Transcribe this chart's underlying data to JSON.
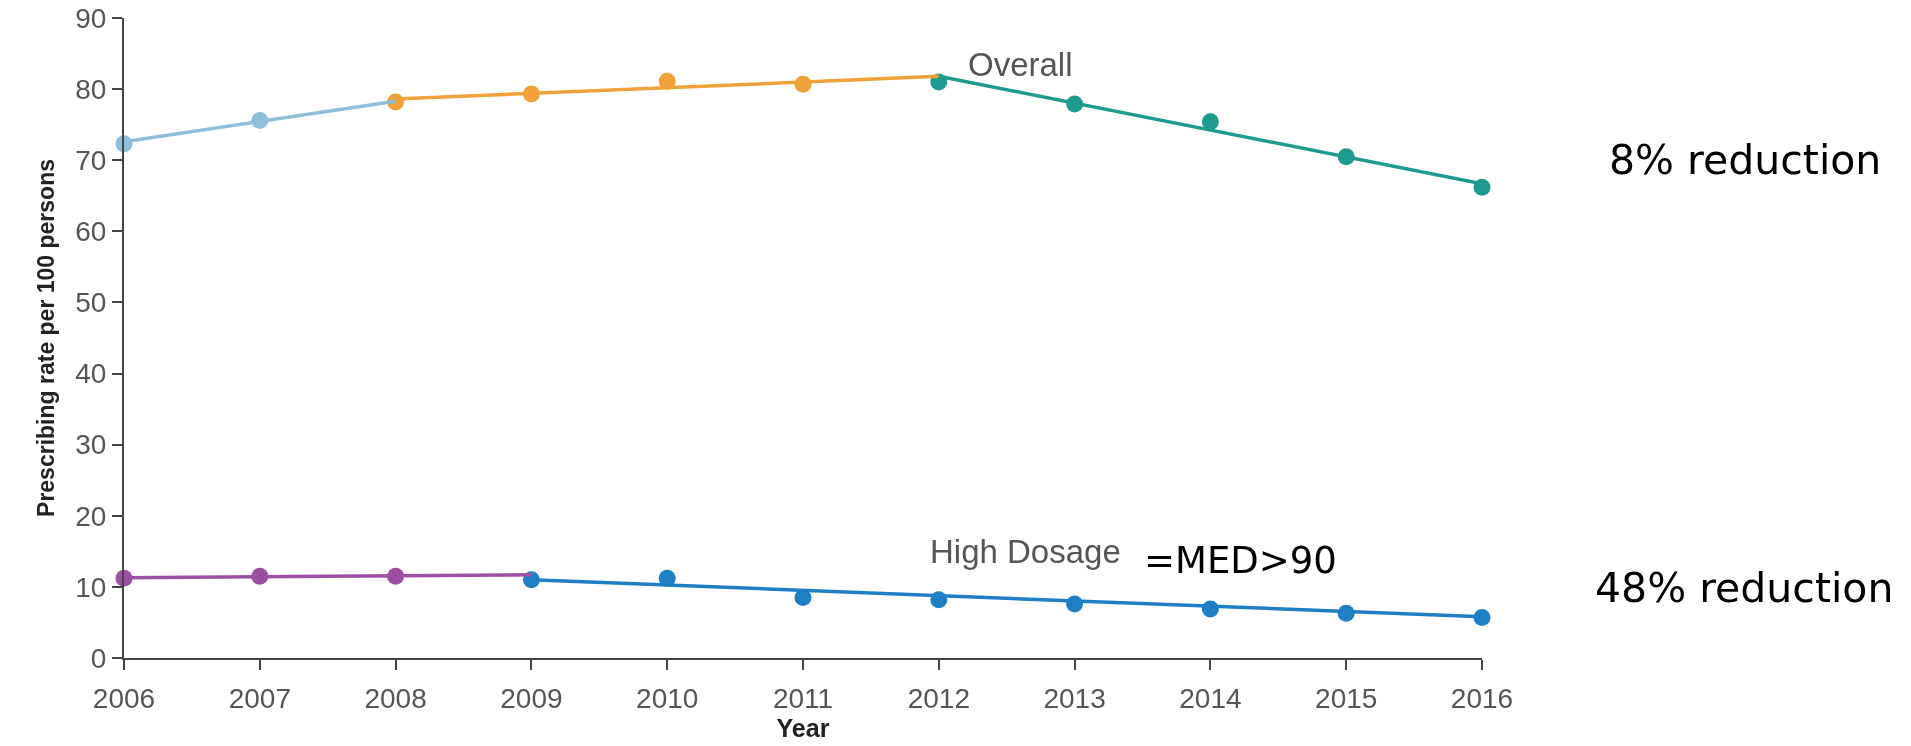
{
  "chart_data": {
    "type": "scatter",
    "xlabel": "Year",
    "ylabel": "Prescribing rate per 100 persons",
    "x": [
      2006,
      2007,
      2008,
      2009,
      2010,
      2011,
      2012,
      2013,
      2014,
      2015,
      2016
    ],
    "xlim": [
      2006,
      2016
    ],
    "xticks": [
      2006,
      2007,
      2008,
      2009,
      2010,
      2011,
      2012,
      2013,
      2014,
      2015,
      2016
    ],
    "ylim": [
      0,
      90
    ],
    "yticks": [
      0,
      10,
      20,
      30,
      40,
      50,
      60,
      70,
      80,
      90
    ],
    "grid": false,
    "marker": "circle",
    "series": [
      {
        "values": [
          72.3,
          75.6,
          78.2,
          79.3,
          81.1,
          80.7,
          81.0,
          77.9,
          75.4,
          70.5,
          66.2
        ],
        "colors": [
          "#8dbfdb",
          "#8dbfdb",
          "#f0a13a",
          "#f0a13a",
          "#f0a13a",
          "#f0a13a",
          "#1e9a8f",
          "#1e9a8f",
          "#1e9a8f",
          "#1e9a8f",
          "#1e9a8f"
        ]
      },
      {
        "values": [
          11.2,
          11.5,
          11.5,
          11.0,
          11.2,
          8.5,
          8.2,
          7.6,
          6.9,
          6.3,
          5.7
        ],
        "colors": [
          "#9c4fa3",
          "#9c4fa3",
          "#9c4fa3",
          "#1f7fc4",
          "#1f7fc4",
          "#1f7fc4",
          "#1f7fc4",
          "#1f7fc4",
          "#1f7fc4",
          "#1f7fc4",
          "#1f7fc4"
        ]
      },
      {
        "type": "line",
        "marker": "none",
        "x": [
          2006,
          2008
        ],
        "values": [
          72.6,
          78.3
        ],
        "color": "#8dbfdb"
      },
      {
        "type": "line",
        "marker": "none",
        "x": [
          2008,
          2012
        ],
        "values": [
          78.6,
          81.8
        ],
        "color": "#f0a13a"
      },
      {
        "type": "line",
        "marker": "none",
        "x": [
          2012,
          2016
        ],
        "values": [
          81.8,
          66.7
        ],
        "color": "#1e9a8f"
      },
      {
        "type": "line",
        "marker": "none",
        "x": [
          2006,
          2009
        ],
        "values": [
          11.3,
          11.7
        ],
        "color": "#9c4fa3"
      },
      {
        "type": "line",
        "marker": "none",
        "x": [
          2009,
          2016
        ],
        "values": [
          11.0,
          5.8
        ],
        "color": "#1f7fc4"
      }
    ],
    "annotations": [
      "Overall",
      "High Dosage",
      "=MED>90",
      "8% reduction",
      "48% reduction"
    ]
  }
}
